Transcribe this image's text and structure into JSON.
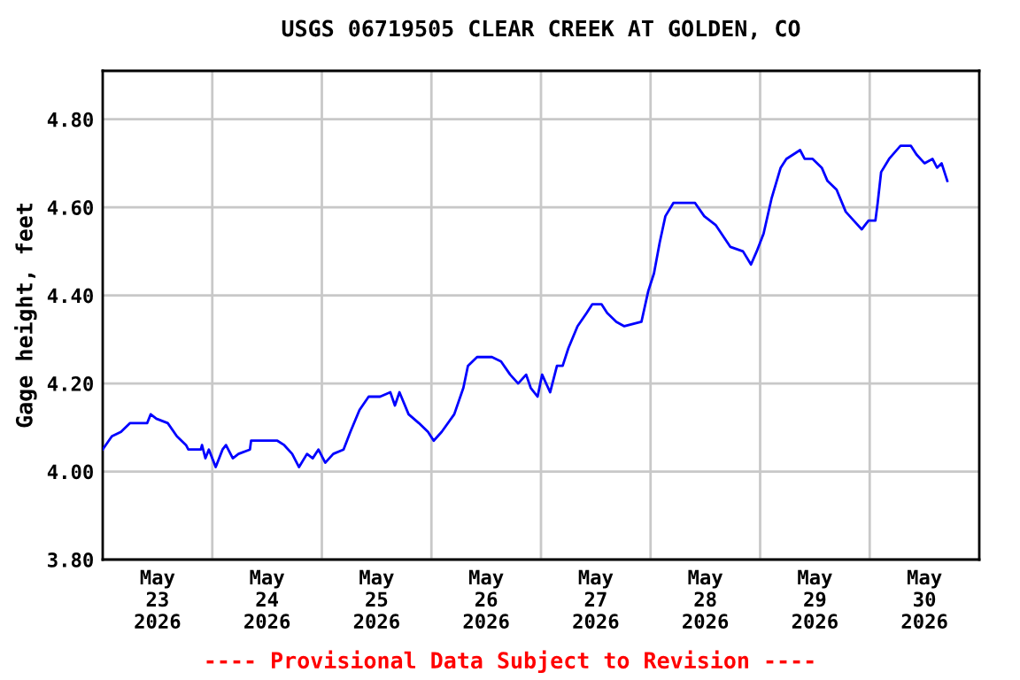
{
  "chart_data": {
    "type": "line",
    "title": "USGS 06719505 CLEAR CREEK AT GOLDEN, CO",
    "ylabel": "Gage height, feet",
    "annotations": [
      "---- Provisional Data Subject to Revision ----"
    ],
    "x": [
      "2026-05-23T00:00",
      "2026-05-23T02:00",
      "2026-05-23T04:00",
      "2026-05-23T06:00",
      "2026-05-23T09:45",
      "2026-05-23T10:30",
      "2026-05-23T11:45",
      "2026-05-23T14:15",
      "2026-05-23T16:15",
      "2026-05-23T18:15",
      "2026-05-23T18:45",
      "2026-05-23T21:30",
      "2026-05-23T21:45",
      "2026-05-23T22:30",
      "2026-05-23T23:15",
      "2026-05-24T00:45",
      "2026-05-24T02:15",
      "2026-05-24T03:00",
      "2026-05-24T04:30",
      "2026-05-24T05:45",
      "2026-05-24T08:15",
      "2026-05-24T08:30",
      "2026-05-24T14:15",
      "2026-05-24T15:45",
      "2026-05-24T17:30",
      "2026-05-24T19:00",
      "2026-05-24T20:45",
      "2026-05-24T22:00",
      "2026-05-24T23:15",
      "2026-05-25T00:45",
      "2026-05-25T02:30",
      "2026-05-25T04:45",
      "2026-05-25T06:15",
      "2026-05-25T08:15",
      "2026-05-25T10:15",
      "2026-05-25T12:45",
      "2026-05-25T15:00",
      "2026-05-25T16:00",
      "2026-05-25T17:00",
      "2026-05-25T19:00",
      "2026-05-25T21:15",
      "2026-05-25T23:15",
      "2026-05-26T00:30",
      "2026-05-26T02:15",
      "2026-05-26T05:00",
      "2026-05-26T07:00",
      "2026-05-26T08:00",
      "2026-05-26T10:00",
      "2026-05-26T13:15",
      "2026-05-26T15:15",
      "2026-05-26T17:15",
      "2026-05-26T19:00",
      "2026-05-26T20:45",
      "2026-05-26T21:45",
      "2026-05-26T23:15",
      "2026-05-27T00:15",
      "2026-05-27T02:00",
      "2026-05-27T03:30",
      "2026-05-27T04:45",
      "2026-05-27T06:00",
      "2026-05-27T08:00",
      "2026-05-27T10:00",
      "2026-05-27T11:15",
      "2026-05-27T13:15",
      "2026-05-27T14:30",
      "2026-05-27T16:30",
      "2026-05-27T18:15",
      "2026-05-27T22:00",
      "2026-05-27T23:30",
      "2026-05-28T00:45",
      "2026-05-28T02:00",
      "2026-05-28T03:15",
      "2026-05-28T05:00",
      "2026-05-28T09:45",
      "2026-05-28T11:45",
      "2026-05-28T14:15",
      "2026-05-28T17:30",
      "2026-05-28T20:15",
      "2026-05-28T22:00",
      "2026-05-28T23:15",
      "2026-05-29T00:45",
      "2026-05-29T02:30",
      "2026-05-29T04:30",
      "2026-05-29T05:45",
      "2026-05-29T08:45",
      "2026-05-29T09:45",
      "2026-05-29T11:30",
      "2026-05-29T13:30",
      "2026-05-29T14:45",
      "2026-05-29T16:45",
      "2026-05-29T18:45",
      "2026-05-29T20:30",
      "2026-05-29T22:15",
      "2026-05-29T23:45",
      "2026-05-30T01:15",
      "2026-05-30T01:45",
      "2026-05-30T02:30",
      "2026-05-30T04:15",
      "2026-05-30T06:45",
      "2026-05-30T09:00",
      "2026-05-30T10:15",
      "2026-05-30T12:00",
      "2026-05-30T13:45",
      "2026-05-30T14:45",
      "2026-05-30T15:45",
      "2026-05-30T17:00"
    ],
    "series": [
      {
        "color": "#0000ff",
        "values": [
          4.05,
          4.08,
          4.09,
          4.11,
          4.11,
          4.13,
          4.12,
          4.11,
          4.08,
          4.06,
          4.05,
          4.05,
          4.06,
          4.03,
          4.05,
          4.01,
          4.05,
          4.06,
          4.03,
          4.04,
          4.05,
          4.07,
          4.07,
          4.06,
          4.04,
          4.01,
          4.04,
          4.03,
          4.05,
          4.02,
          4.04,
          4.05,
          4.09,
          4.14,
          4.17,
          4.17,
          4.18,
          4.15,
          4.18,
          4.13,
          4.11,
          4.09,
          4.07,
          4.09,
          4.13,
          4.19,
          4.24,
          4.26,
          4.26,
          4.25,
          4.22,
          4.2,
          4.22,
          4.19,
          4.17,
          4.22,
          4.18,
          4.24,
          4.24,
          4.28,
          4.33,
          4.36,
          4.38,
          4.38,
          4.36,
          4.34,
          4.33,
          4.34,
          4.41,
          4.45,
          4.52,
          4.58,
          4.61,
          4.61,
          4.58,
          4.56,
          4.51,
          4.5,
          4.47,
          4.5,
          4.54,
          4.62,
          4.69,
          4.71,
          4.73,
          4.71,
          4.71,
          4.69,
          4.66,
          4.64,
          4.59,
          4.57,
          4.55,
          4.57,
          4.57,
          4.61,
          4.68,
          4.71,
          4.74,
          4.74,
          4.72,
          4.7,
          4.71,
          4.69,
          4.7,
          4.66
        ]
      }
    ],
    "xlim": [
      "2026-05-23T00:00",
      "2026-05-31T00:00"
    ],
    "xticks": [
      {
        "value": "2026-05-23T12:00",
        "label": "May\n23\n2026"
      },
      {
        "value": "2026-05-24T12:00",
        "label": "May\n24\n2026"
      },
      {
        "value": "2026-05-25T12:00",
        "label": "May\n25\n2026"
      },
      {
        "value": "2026-05-26T12:00",
        "label": "May\n26\n2026"
      },
      {
        "value": "2026-05-27T12:00",
        "label": "May\n27\n2026"
      },
      {
        "value": "2026-05-28T12:00",
        "label": "May\n28\n2026"
      },
      {
        "value": "2026-05-29T12:00",
        "label": "May\n29\n2026"
      },
      {
        "value": "2026-05-30T12:00",
        "label": "May\n30\n2026"
      },
      {
        "value": "2026-05-24T00:00",
        "label": null
      },
      {
        "value": "2026-05-25T00:00",
        "label": null
      },
      {
        "value": "2026-05-26T00:00",
        "label": null
      },
      {
        "value": "2026-05-27T00:00",
        "label": null
      },
      {
        "value": "2026-05-28T00:00",
        "label": null
      },
      {
        "value": "2026-05-29T00:00",
        "label": null
      },
      {
        "value": "2026-05-30T00:00",
        "label": null
      }
    ],
    "ylim": [
      3.8,
      4.91
    ],
    "yticks": [
      {
        "value": 3.8,
        "label": "3.80"
      },
      {
        "value": 4.0,
        "label": "4.00"
      },
      {
        "value": 4.2,
        "label": "4.20"
      },
      {
        "value": 4.4,
        "label": "4.40"
      },
      {
        "value": 4.6,
        "label": "4.60"
      },
      {
        "value": 4.8,
        "label": "4.80"
      }
    ],
    "grid": true,
    "marker": "none",
    "line_style": "solid"
  }
}
